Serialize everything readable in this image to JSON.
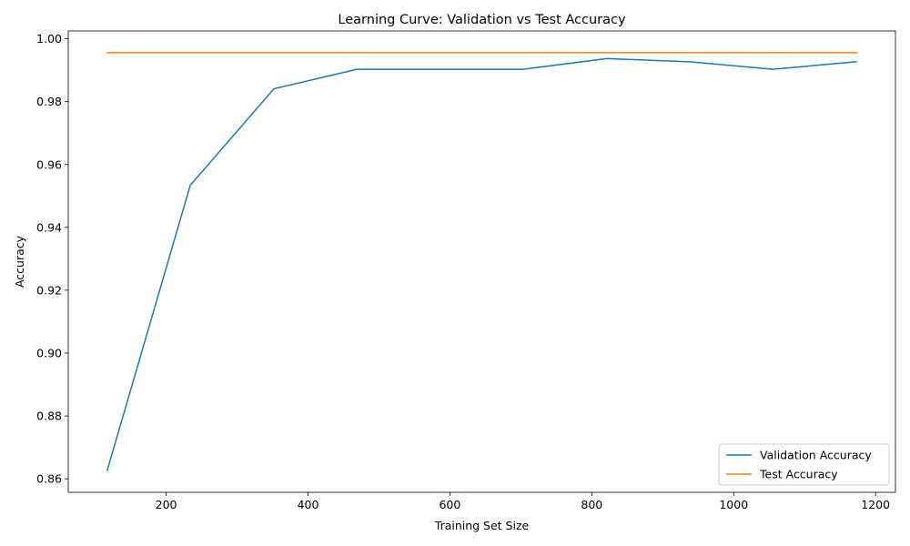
{
  "chart_data": {
    "type": "line",
    "title": "Learning Curve: Validation vs Test Accuracy",
    "xlabel": "Training Set Size",
    "ylabel": "Accuracy",
    "xlim": [
      62,
      1228
    ],
    "ylim": [
      0.8557,
      1.0025
    ],
    "xticks": [
      200,
      400,
      600,
      800,
      1000,
      1200
    ],
    "xtick_labels": [
      "200",
      "400",
      "600",
      "800",
      "1000",
      "1200"
    ],
    "yticks": [
      0.86,
      0.88,
      0.9,
      0.92,
      0.94,
      0.96,
      0.98,
      1.0
    ],
    "ytick_labels": [
      "0.86",
      "0.88",
      "0.90",
      "0.92",
      "0.94",
      "0.96",
      "0.98",
      "1.00"
    ],
    "grid": false,
    "legend_position": "lower-right",
    "series": [
      {
        "name": "Validation Accuracy",
        "color": "#1f77b4",
        "x": [
          117,
          234,
          352,
          469,
          586,
          703,
          821,
          938,
          1055,
          1173
        ],
        "y": [
          0.8627,
          0.9534,
          0.9841,
          0.9903,
          0.9903,
          0.9903,
          0.9937,
          0.9927,
          0.9903,
          0.9927
        ]
      },
      {
        "name": "Test Accuracy",
        "color": "#ff7f0e",
        "x": [
          117,
          234,
          352,
          469,
          586,
          703,
          821,
          938,
          1055,
          1173
        ],
        "y": [
          0.9956,
          0.9956,
          0.9956,
          0.9956,
          0.9956,
          0.9956,
          0.9956,
          0.9956,
          0.9956,
          0.9956
        ]
      }
    ]
  }
}
